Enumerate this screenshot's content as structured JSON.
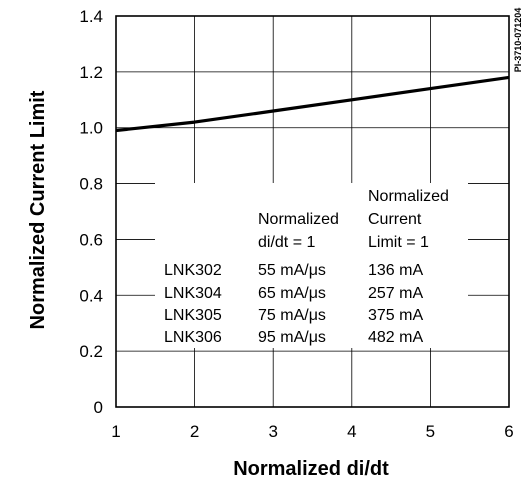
{
  "chart_data": {
    "type": "line",
    "xlabel": "Normalized di/dt",
    "ylabel": "Normalized Current Limit",
    "xlim": [
      1,
      6
    ],
    "ylim": [
      0,
      1.4
    ],
    "x_ticks": [
      "1",
      "2",
      "3",
      "4",
      "5",
      "6"
    ],
    "y_ticks": [
      "0",
      "0.2",
      "0.4",
      "0.6",
      "0.8",
      "1.0",
      "1.2",
      "1.4"
    ],
    "grid": true,
    "series": [
      {
        "x": [
          1,
          2,
          3,
          4,
          5,
          6
        ],
        "y": [
          0.99,
          1.02,
          1.06,
          1.1,
          1.14,
          1.18
        ]
      }
    ],
    "figure_code": "PI-3710-071204",
    "table": {
      "header_didt": [
        "Normalized",
        "di/dt = 1"
      ],
      "header_current": [
        "Normalized",
        "Current",
        "Limit = 1"
      ],
      "rows": [
        {
          "part": "LNK302",
          "didt": "55 mA/μs",
          "current": "136 mA"
        },
        {
          "part": "LNK304",
          "didt": "65 mA/μs",
          "current": "257 mA"
        },
        {
          "part": "LNK305",
          "didt": "75 mA/μs",
          "current": "375 mA"
        },
        {
          "part": "LNK306",
          "didt": "95 mA/μs",
          "current": "482 mA"
        }
      ]
    }
  }
}
